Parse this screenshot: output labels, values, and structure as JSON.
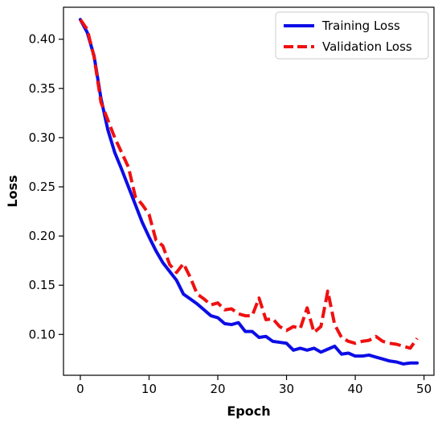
{
  "chart_data": {
    "type": "line",
    "title": "",
    "xlabel": "Epoch",
    "ylabel": "Loss",
    "xlim": [
      -2.45,
      51.45
    ],
    "ylim": [
      0.0585,
      0.4325
    ],
    "xticks": [
      0,
      10,
      20,
      30,
      40,
      50
    ],
    "yticks": [
      0.1,
      0.15,
      0.2,
      0.25,
      0.3,
      0.35,
      0.4
    ],
    "ytick_labels": [
      "0.10",
      "0.15",
      "0.20",
      "0.25",
      "0.30",
      "0.35",
      "0.40"
    ],
    "grid": false,
    "legend_position": "upper-right",
    "x": [
      0,
      1,
      2,
      3,
      4,
      5,
      6,
      7,
      8,
      9,
      10,
      11,
      12,
      13,
      14,
      15,
      16,
      17,
      18,
      19,
      20,
      21,
      22,
      23,
      24,
      25,
      26,
      27,
      28,
      29,
      30,
      31,
      32,
      33,
      34,
      35,
      36,
      37,
      38,
      39,
      40,
      41,
      42,
      43,
      44,
      45,
      46,
      47,
      48,
      49
    ],
    "series": [
      {
        "name": "Training Loss",
        "color": "#0d0de6",
        "style": "solid",
        "values": [
          0.42,
          0.407,
          0.383,
          0.34,
          0.308,
          0.285,
          0.268,
          0.25,
          0.232,
          0.214,
          0.199,
          0.185,
          0.173,
          0.164,
          0.155,
          0.141,
          0.136,
          0.131,
          0.125,
          0.119,
          0.117,
          0.111,
          0.11,
          0.112,
          0.103,
          0.103,
          0.097,
          0.098,
          0.093,
          0.092,
          0.091,
          0.084,
          0.086,
          0.084,
          0.086,
          0.082,
          0.085,
          0.088,
          0.08,
          0.081,
          0.078,
          0.078,
          0.079,
          0.077,
          0.075,
          0.073,
          0.072,
          0.07,
          0.071,
          0.071
        ]
      },
      {
        "name": "Validation Loss",
        "color": "#f01010",
        "style": "dashed",
        "values": [
          0.42,
          0.41,
          0.382,
          0.336,
          0.318,
          0.3,
          0.285,
          0.27,
          0.24,
          0.232,
          0.222,
          0.196,
          0.19,
          0.171,
          0.163,
          0.172,
          0.158,
          0.141,
          0.136,
          0.13,
          0.132,
          0.125,
          0.126,
          0.121,
          0.119,
          0.119,
          0.137,
          0.115,
          0.116,
          0.108,
          0.104,
          0.108,
          0.106,
          0.127,
          0.102,
          0.108,
          0.144,
          0.11,
          0.097,
          0.093,
          0.091,
          0.093,
          0.094,
          0.098,
          0.093,
          0.091,
          0.09,
          0.088,
          0.086,
          0.096
        ]
      }
    ]
  }
}
